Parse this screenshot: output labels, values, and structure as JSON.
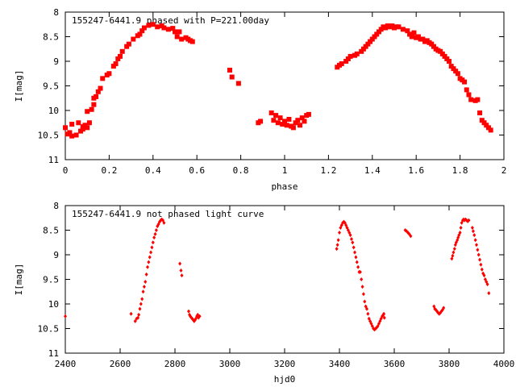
{
  "chart_data": [
    {
      "type": "scatter",
      "title": "155247-6441.9 phased with P=221.00day",
      "xlabel": "phase",
      "ylabel": "I[mag]",
      "xlim": [
        0,
        2
      ],
      "ylim": [
        8,
        11
      ],
      "y_inverted": true,
      "x_ticks": [
        "0",
        "0.2",
        "0.4",
        "0.6",
        "0.8",
        "1",
        "1.2",
        "1.4",
        "1.6",
        "1.8",
        "2"
      ],
      "y_ticks": [
        "8",
        "8.5",
        "9",
        "9.5",
        "10",
        "10.5",
        "11"
      ],
      "grid": false,
      "marker_color": "#ff0000",
      "marker": "filled-square",
      "series": [
        {
          "x": [
            0.0,
            0.01,
            0.02,
            0.03,
            0.03,
            0.05,
            0.06,
            0.07,
            0.08,
            0.08,
            0.09,
            0.1,
            0.1,
            0.11,
            0.12,
            0.13,
            0.13,
            0.14,
            0.15,
            0.16,
            0.17,
            0.19,
            0.2,
            0.22,
            0.23,
            0.24,
            0.25,
            0.26,
            0.28,
            0.29,
            0.31,
            0.33,
            0.34,
            0.35,
            0.36,
            0.38,
            0.4,
            0.42,
            0.44,
            0.45,
            0.47,
            0.49,
            0.5,
            0.51,
            0.52,
            0.53,
            0.55,
            0.56,
            0.57,
            0.58,
            0.75,
            0.76,
            0.79,
            0.88,
            0.89,
            0.94,
            0.95,
            0.96,
            0.97,
            0.98,
            0.99,
            1.0,
            1.01,
            1.02,
            1.03,
            1.04,
            1.05,
            1.06,
            1.07,
            1.08,
            1.09,
            1.1,
            1.11,
            1.24,
            1.25,
            1.26,
            1.28,
            1.29,
            1.3,
            1.32,
            1.33,
            1.35,
            1.36,
            1.37,
            1.38,
            1.39,
            1.4,
            1.41,
            1.42,
            1.43,
            1.44,
            1.45,
            1.46,
            1.47,
            1.48,
            1.49,
            1.5,
            1.51,
            1.52,
            1.54,
            1.56,
            1.57,
            1.58,
            1.59,
            1.6,
            1.61,
            1.62,
            1.63,
            1.64,
            1.65,
            1.66,
            1.67,
            1.68,
            1.69,
            1.7,
            1.71,
            1.72,
            1.73,
            1.74,
            1.75,
            1.76,
            1.77,
            1.78,
            1.79,
            1.8,
            1.81,
            1.82,
            1.83,
            1.84,
            1.85,
            1.87,
            1.88,
            1.89,
            1.9,
            1.91,
            1.92,
            1.93,
            1.94
          ],
          "y": [
            10.35,
            10.48,
            10.45,
            10.52,
            10.28,
            10.5,
            10.25,
            10.42,
            10.38,
            10.33,
            10.3,
            10.35,
            10.02,
            10.25,
            9.98,
            9.88,
            9.75,
            9.72,
            9.62,
            9.55,
            9.35,
            9.28,
            9.25,
            9.1,
            9.05,
            8.95,
            8.9,
            8.8,
            8.7,
            8.65,
            8.55,
            8.48,
            8.45,
            8.38,
            8.32,
            8.27,
            8.25,
            8.3,
            8.28,
            8.32,
            8.35,
            8.33,
            8.4,
            8.5,
            8.4,
            8.55,
            8.52,
            8.55,
            8.58,
            8.6,
            9.18,
            9.32,
            9.45,
            10.25,
            10.22,
            10.05,
            10.2,
            10.1,
            10.25,
            10.15,
            10.28,
            10.22,
            10.3,
            10.18,
            10.32,
            10.35,
            10.25,
            10.2,
            10.3,
            10.15,
            10.22,
            10.1,
            10.08,
            9.12,
            9.08,
            9.05,
            9.0,
            8.95,
            8.9,
            8.88,
            8.85,
            8.8,
            8.75,
            8.7,
            8.65,
            8.6,
            8.55,
            8.5,
            8.45,
            8.4,
            8.35,
            8.3,
            8.32,
            8.28,
            8.3,
            8.28,
            8.32,
            8.3,
            8.3,
            8.35,
            8.38,
            8.45,
            8.5,
            8.42,
            8.52,
            8.5,
            8.55,
            8.55,
            8.6,
            8.58,
            8.62,
            8.65,
            8.7,
            8.75,
            8.78,
            8.8,
            8.85,
            8.9,
            8.95,
            9.0,
            9.1,
            9.15,
            9.2,
            9.25,
            9.35,
            9.38,
            9.42,
            9.58,
            9.68,
            9.78,
            9.8,
            9.78,
            10.05,
            10.2,
            10.25,
            10.3,
            10.35,
            10.4
          ]
        }
      ]
    },
    {
      "type": "scatter",
      "title": "155247-6441.9 not phased light curve",
      "xlabel": "hjd0",
      "ylabel": "I[mag]",
      "xlim": [
        2400,
        4000
      ],
      "ylim": [
        8,
        11
      ],
      "y_inverted": true,
      "x_ticks": [
        "2400",
        "2600",
        "2800",
        "3000",
        "3200",
        "3400",
        "3600",
        "3800",
        "4000"
      ],
      "y_ticks": [
        "8",
        "8.5",
        "9",
        "9.5",
        "10",
        "10.5",
        "11"
      ],
      "grid": false,
      "marker_color": "#ff0000",
      "marker": "filled-diamond",
      "series": [
        {
          "x": [
            2400,
            2640,
            2655,
            2660,
            2665,
            2668,
            2672,
            2676,
            2680,
            2684,
            2688,
            2692,
            2696,
            2700,
            2704,
            2708,
            2712,
            2716,
            2720,
            2724,
            2728,
            2732,
            2736,
            2740,
            2744,
            2748,
            2752,
            2756,
            2760,
            2818,
            2822,
            2825,
            2850,
            2853,
            2856,
            2860,
            2863,
            2866,
            2870,
            2873,
            2876,
            2880,
            2883,
            2886,
            2890,
            3390,
            3393,
            3396,
            3400,
            3404,
            3408,
            3412,
            3416,
            3420,
            3424,
            3428,
            3432,
            3436,
            3440,
            3444,
            3448,
            3452,
            3456,
            3460,
            3464,
            3468,
            3472,
            3476,
            3480,
            3484,
            3488,
            3492,
            3496,
            3500,
            3504,
            3508,
            3512,
            3516,
            3520,
            3524,
            3528,
            3532,
            3536,
            3540,
            3544,
            3548,
            3552,
            3556,
            3560,
            3562,
            3564,
            3640,
            3645,
            3650,
            3655,
            3660,
            3745,
            3748,
            3752,
            3756,
            3760,
            3764,
            3768,
            3772,
            3776,
            3780,
            3810,
            3813,
            3816,
            3820,
            3823,
            3826,
            3830,
            3833,
            3836,
            3840,
            3843,
            3846,
            3850,
            3853,
            3856,
            3860,
            3864,
            3868,
            3872,
            3885,
            3888,
            3892,
            3896,
            3900,
            3904,
            3908,
            3912,
            3916,
            3920,
            3924,
            3928,
            3932,
            3936,
            3940,
            3945
          ],
          "y": [
            10.25,
            10.2,
            10.35,
            10.3,
            10.28,
            10.22,
            10.1,
            10.0,
            9.9,
            9.75,
            9.65,
            9.55,
            9.4,
            9.25,
            9.15,
            9.05,
            8.95,
            8.85,
            8.75,
            8.65,
            8.58,
            8.5,
            8.42,
            8.38,
            8.33,
            8.3,
            8.28,
            8.3,
            8.35,
            9.18,
            9.32,
            9.42,
            10.15,
            10.22,
            10.25,
            10.28,
            10.3,
            10.32,
            10.35,
            10.33,
            10.3,
            10.25,
            10.22,
            10.28,
            10.25,
            8.88,
            8.8,
            8.7,
            8.55,
            8.45,
            8.4,
            8.35,
            8.33,
            8.35,
            8.4,
            8.45,
            8.5,
            8.55,
            8.6,
            8.68,
            8.75,
            8.85,
            8.95,
            9.05,
            9.15,
            9.25,
            9.35,
            9.35,
            9.5,
            9.65,
            9.8,
            9.95,
            10.05,
            10.1,
            10.2,
            10.3,
            10.35,
            10.4,
            10.45,
            10.5,
            10.52,
            10.5,
            10.48,
            10.45,
            10.4,
            10.35,
            10.3,
            10.25,
            10.22,
            10.2,
            10.28,
            8.5,
            8.52,
            8.55,
            8.58,
            8.62,
            10.05,
            10.1,
            10.12,
            10.15,
            10.18,
            10.2,
            10.18,
            10.15,
            10.12,
            10.08,
            9.08,
            9.02,
            8.95,
            8.88,
            8.8,
            8.75,
            8.7,
            8.65,
            8.6,
            8.55,
            8.45,
            8.35,
            8.3,
            8.28,
            8.3,
            8.28,
            8.3,
            8.32,
            8.3,
            8.45,
            8.52,
            8.6,
            8.7,
            8.8,
            8.9,
            9.0,
            9.1,
            9.2,
            9.3,
            9.38,
            9.42,
            9.5,
            9.55,
            9.6,
            9.78
          ]
        }
      ]
    }
  ]
}
